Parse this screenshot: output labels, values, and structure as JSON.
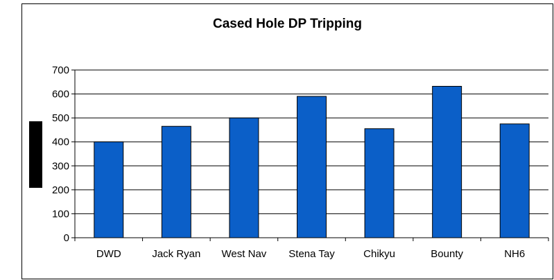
{
  "chart_data": {
    "type": "bar",
    "title": "Cased Hole DP Tripping",
    "xlabel": "",
    "ylabel": "",
    "categories": [
      "DWD",
      "Jack Ryan",
      "West Nav",
      "Stena Tay",
      "Chikyu",
      "Bounty",
      "NH6"
    ],
    "values": [
      400,
      465,
      500,
      590,
      455,
      632,
      475
    ],
    "ylim": [
      0,
      700
    ],
    "yticks": [
      0,
      100,
      200,
      300,
      400,
      500,
      600,
      700
    ],
    "grid": true,
    "legend": "none",
    "bar_color": "#0b5fc8"
  }
}
